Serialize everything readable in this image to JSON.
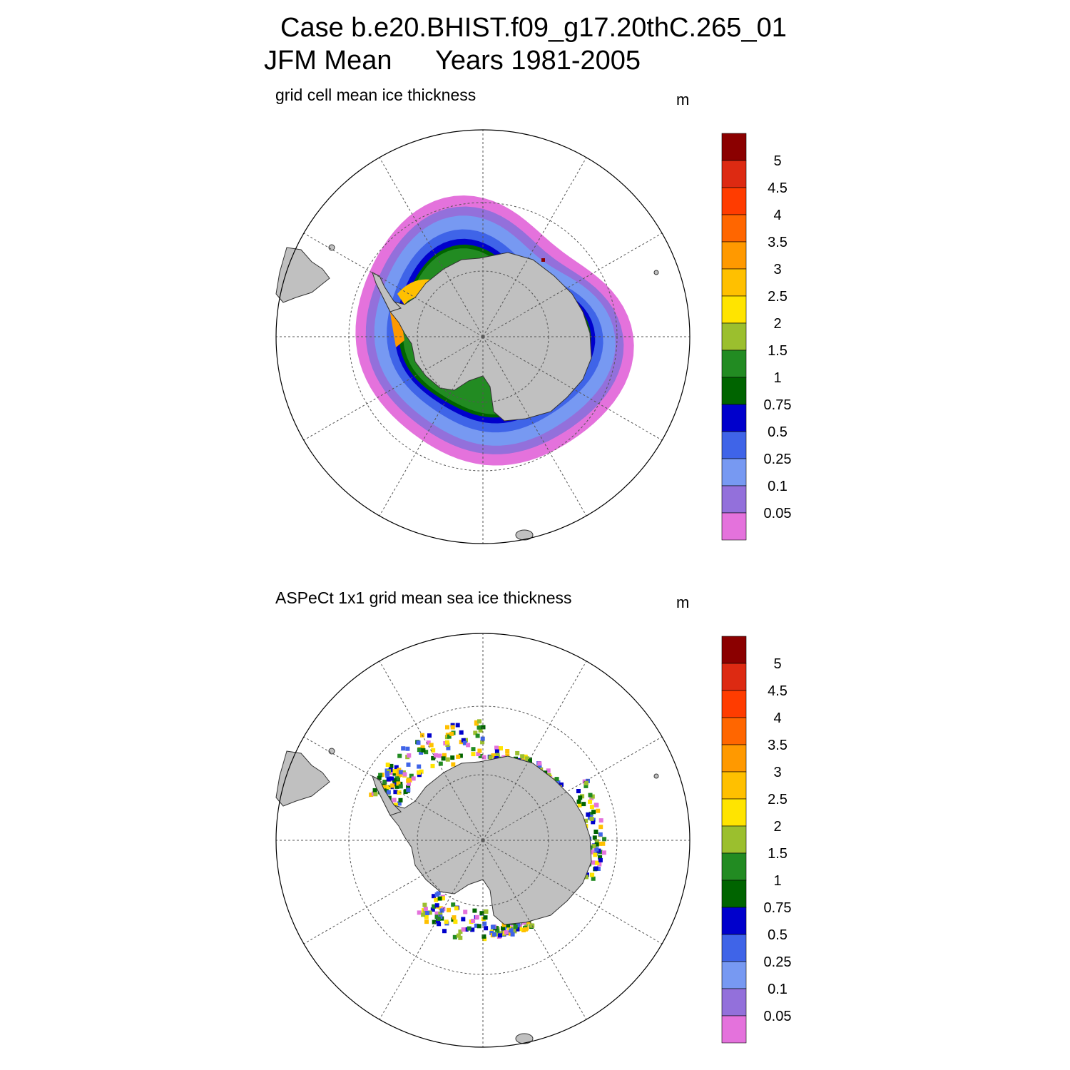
{
  "title": {
    "line1": "Case b.e20.BHIST.f09_g17.20thC.265_01",
    "season": "JFM Mean",
    "years": "Years 1981-2005"
  },
  "panels": [
    {
      "title": "grid cell mean ice thickness",
      "units": "m"
    },
    {
      "title": "ASPeCt 1x1 grid mean sea ice thickness",
      "units": "m"
    }
  ],
  "colorbar": {
    "labels": [
      "5",
      "4.5",
      "4",
      "3.5",
      "3",
      "2.5",
      "2",
      "1.5",
      "1",
      "0.75",
      "0.5",
      "0.25",
      "0.1",
      "0.05"
    ],
    "colors": [
      "#8b0000",
      "#dd2a12",
      "#ff3c00",
      "#ff6600",
      "#ff9900",
      "#ffc000",
      "#ffe400",
      "#9bbf2e",
      "#228b22",
      "#006400",
      "#0000cc",
      "#3f64e8",
      "#7799f2",
      "#9370db",
      "#e472dc"
    ]
  },
  "colors": {
    "land": "#c0c0c0",
    "ocean": "#ffffff",
    "grid": "#555555"
  }
}
